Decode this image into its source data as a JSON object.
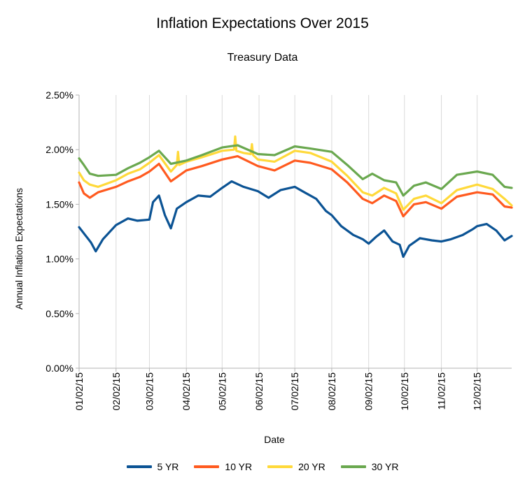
{
  "chart_data": {
    "type": "line",
    "title": "Inflation Expectations Over 2015",
    "subtitle": "Treasury Data",
    "xlabel": "Date",
    "ylabel": "Annual  Inflation  Expectations",
    "ylim": [
      0,
      0.025
    ],
    "yticks": [
      "0.00%",
      "0.50%",
      "1.00%",
      "1.50%",
      "2.00%",
      "2.50%"
    ],
    "ytick_values": [
      0,
      0.005,
      0.01,
      0.015,
      0.02,
      0.025
    ],
    "xlim": [
      "2015-01-02",
      "2015-12-31"
    ],
    "xticks": [
      "01/02/15",
      "02/02/15",
      "03/02/15",
      "04/02/15",
      "05/02/15",
      "06/02/15",
      "07/02/15",
      "08/02/15",
      "09/02/15",
      "10/02/15",
      "11/02/15",
      "12/02/15"
    ],
    "xtick_dates": [
      "2015-01-02",
      "2015-02-02",
      "2015-03-02",
      "2015-04-02",
      "2015-05-02",
      "2015-06-02",
      "2015-07-02",
      "2015-08-02",
      "2015-09-02",
      "2015-10-02",
      "2015-11-02",
      "2015-12-02"
    ],
    "grid": "vertical",
    "legend_position": "bottom",
    "series": [
      {
        "name": "5 YR",
        "color": "#0b5394",
        "x": [
          "2015-01-02",
          "2015-01-07",
          "2015-01-12",
          "2015-01-16",
          "2015-01-22",
          "2015-02-02",
          "2015-02-12",
          "2015-02-20",
          "2015-03-02",
          "2015-03-05",
          "2015-03-10",
          "2015-03-15",
          "2015-03-20",
          "2015-03-25",
          "2015-04-02",
          "2015-04-12",
          "2015-04-22",
          "2015-05-02",
          "2015-05-10",
          "2015-05-20",
          "2015-06-01",
          "2015-06-10",
          "2015-06-20",
          "2015-07-02",
          "2015-07-10",
          "2015-07-20",
          "2015-07-28",
          "2015-08-02",
          "2015-08-10",
          "2015-08-20",
          "2015-08-28",
          "2015-09-02",
          "2015-09-08",
          "2015-09-15",
          "2015-09-22",
          "2015-09-28",
          "2015-10-01",
          "2015-10-06",
          "2015-10-15",
          "2015-10-25",
          "2015-11-02",
          "2015-11-10",
          "2015-11-20",
          "2015-11-28",
          "2015-12-02",
          "2015-12-10",
          "2015-12-18",
          "2015-12-25",
          "2015-12-31"
        ],
        "values": [
          0.0129,
          0.0122,
          0.0115,
          0.0107,
          0.0118,
          0.0131,
          0.0137,
          0.0135,
          0.0136,
          0.0152,
          0.0158,
          0.014,
          0.0128,
          0.0146,
          0.0152,
          0.0158,
          0.0157,
          0.0165,
          0.0171,
          0.0166,
          0.0162,
          0.0156,
          0.0163,
          0.0166,
          0.0161,
          0.0155,
          0.0144,
          0.014,
          0.013,
          0.0122,
          0.0118,
          0.0114,
          0.012,
          0.0126,
          0.0116,
          0.0113,
          0.0102,
          0.0112,
          0.0119,
          0.0117,
          0.0116,
          0.0118,
          0.0122,
          0.0127,
          0.013,
          0.0132,
          0.0126,
          0.0117,
          0.0121
        ]
      },
      {
        "name": "10 YR",
        "color": "#ff5a1f",
        "x": [
          "2015-01-02",
          "2015-01-06",
          "2015-01-11",
          "2015-01-18",
          "2015-02-02",
          "2015-02-12",
          "2015-02-22",
          "2015-03-02",
          "2015-03-10",
          "2015-03-20",
          "2015-04-02",
          "2015-04-15",
          "2015-05-02",
          "2015-05-15",
          "2015-06-01",
          "2015-06-15",
          "2015-07-02",
          "2015-07-15",
          "2015-08-02",
          "2015-08-15",
          "2015-08-28",
          "2015-09-05",
          "2015-09-15",
          "2015-09-25",
          "2015-10-01",
          "2015-10-10",
          "2015-10-20",
          "2015-11-02",
          "2015-11-15",
          "2015-12-02",
          "2015-12-15",
          "2015-12-25",
          "2015-12-31"
        ],
        "values": [
          0.017,
          0.016,
          0.0156,
          0.0161,
          0.0166,
          0.0171,
          0.0175,
          0.018,
          0.0187,
          0.0171,
          0.0181,
          0.0185,
          0.0191,
          0.0194,
          0.0185,
          0.0181,
          0.019,
          0.0188,
          0.0182,
          0.017,
          0.0155,
          0.0151,
          0.0158,
          0.0153,
          0.0139,
          0.015,
          0.0152,
          0.0146,
          0.0157,
          0.0161,
          0.0159,
          0.0148,
          0.0147
        ]
      },
      {
        "name": "20 YR",
        "color": "#ffd93a",
        "x": [
          "2015-01-02",
          "2015-01-06",
          "2015-01-11",
          "2015-01-18",
          "2015-02-02",
          "2015-02-12",
          "2015-02-22",
          "2015-03-02",
          "2015-03-10",
          "2015-03-20",
          "2015-03-25",
          "2015-03-26",
          "2015-03-27",
          "2015-04-02",
          "2015-04-15",
          "2015-05-02",
          "2015-05-12",
          "2015-05-13",
          "2015-05-14",
          "2015-05-20",
          "2015-05-26",
          "2015-05-27",
          "2015-05-28",
          "2015-06-01",
          "2015-06-15",
          "2015-07-02",
          "2015-07-15",
          "2015-08-02",
          "2015-08-15",
          "2015-08-28",
          "2015-09-05",
          "2015-09-15",
          "2015-09-25",
          "2015-10-01",
          "2015-10-10",
          "2015-10-20",
          "2015-11-02",
          "2015-11-15",
          "2015-12-02",
          "2015-12-15",
          "2015-12-25",
          "2015-12-31"
        ],
        "values": [
          0.0179,
          0.0172,
          0.0168,
          0.0166,
          0.0172,
          0.0178,
          0.0182,
          0.0188,
          0.0195,
          0.018,
          0.0186,
          0.0198,
          0.0186,
          0.0189,
          0.0193,
          0.0199,
          0.02,
          0.0212,
          0.0199,
          0.0197,
          0.0196,
          0.0205,
          0.0195,
          0.0191,
          0.0189,
          0.0199,
          0.0197,
          0.0189,
          0.0176,
          0.0161,
          0.0158,
          0.0165,
          0.016,
          0.0145,
          0.0155,
          0.0158,
          0.0151,
          0.0163,
          0.0168,
          0.0164,
          0.0155,
          0.0149
        ]
      },
      {
        "name": "30 YR",
        "color": "#6aa84f",
        "x": [
          "2015-01-02",
          "2015-01-06",
          "2015-01-11",
          "2015-01-18",
          "2015-02-02",
          "2015-02-12",
          "2015-02-22",
          "2015-03-02",
          "2015-03-10",
          "2015-03-20",
          "2015-04-02",
          "2015-04-15",
          "2015-05-02",
          "2015-05-15",
          "2015-06-01",
          "2015-06-15",
          "2015-07-02",
          "2015-07-15",
          "2015-08-02",
          "2015-08-15",
          "2015-08-28",
          "2015-09-05",
          "2015-09-15",
          "2015-09-25",
          "2015-10-01",
          "2015-10-10",
          "2015-10-20",
          "2015-11-02",
          "2015-11-15",
          "2015-12-02",
          "2015-12-15",
          "2015-12-25",
          "2015-12-31"
        ],
        "values": [
          0.0192,
          0.0186,
          0.0178,
          0.0176,
          0.0177,
          0.0183,
          0.0188,
          0.0193,
          0.0199,
          0.0187,
          0.019,
          0.0195,
          0.0202,
          0.0204,
          0.0196,
          0.0195,
          0.0203,
          0.0201,
          0.0198,
          0.0186,
          0.0173,
          0.0178,
          0.0172,
          0.017,
          0.0158,
          0.0167,
          0.017,
          0.0164,
          0.0177,
          0.018,
          0.0177,
          0.0166,
          0.0165
        ]
      }
    ]
  }
}
